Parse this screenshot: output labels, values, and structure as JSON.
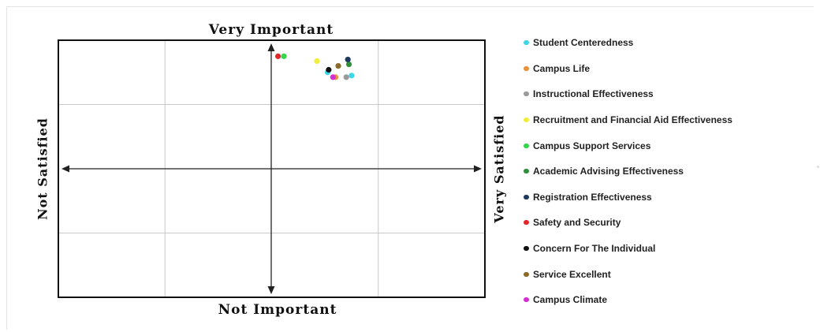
{
  "chart_data": {
    "type": "scatter",
    "title": "",
    "xlabel": "",
    "ylabel": "",
    "quadrant_labels": {
      "top": "Very Important",
      "bottom": "Not Important",
      "left": "Not Satisfied",
      "right": "Very Satisfied"
    },
    "xlim": [
      -4,
      4
    ],
    "ylim": [
      -4,
      4
    ],
    "grid": true,
    "legend_position": "right",
    "series": [
      {
        "name": "Student Centeredness",
        "color": "#3dd6e8",
        "points": [
          [
            1.05,
            3.0
          ],
          [
            1.5,
            2.9
          ]
        ]
      },
      {
        "name": "Campus Life",
        "color": "#e8923a",
        "points": [
          [
            1.2,
            2.85
          ]
        ]
      },
      {
        "name": "Instructional Effectiveness",
        "color": "#9a9a9a",
        "points": [
          [
            1.4,
            2.85
          ]
        ]
      },
      {
        "name": "Recruitment and Financial Aid Effectiveness",
        "color": "#f0ee3a",
        "points": [
          [
            0.85,
            3.35
          ]
        ]
      },
      {
        "name": "Campus Support Services",
        "color": "#36d64a",
        "points": [
          [
            0.23,
            3.5
          ]
        ]
      },
      {
        "name": "Academic Advising Effectiveness",
        "color": "#2f8f3a",
        "points": [
          [
            1.45,
            3.25
          ]
        ]
      },
      {
        "name": "Registration Effectiveness",
        "color": "#1f3a5c",
        "points": [
          [
            1.43,
            3.4
          ]
        ]
      },
      {
        "name": "Safety and Security",
        "color": "#e02828",
        "points": [
          [
            0.12,
            3.5
          ]
        ]
      },
      {
        "name": "Concern For The Individual",
        "color": "#111111",
        "points": [
          [
            1.07,
            3.08
          ]
        ]
      },
      {
        "name": "Service Excellent",
        "color": "#8a6a28",
        "points": [
          [
            1.25,
            3.2
          ]
        ]
      },
      {
        "name": "Campus Climate",
        "color": "#d42ed4",
        "points": [
          [
            1.15,
            2.85
          ]
        ]
      }
    ]
  }
}
